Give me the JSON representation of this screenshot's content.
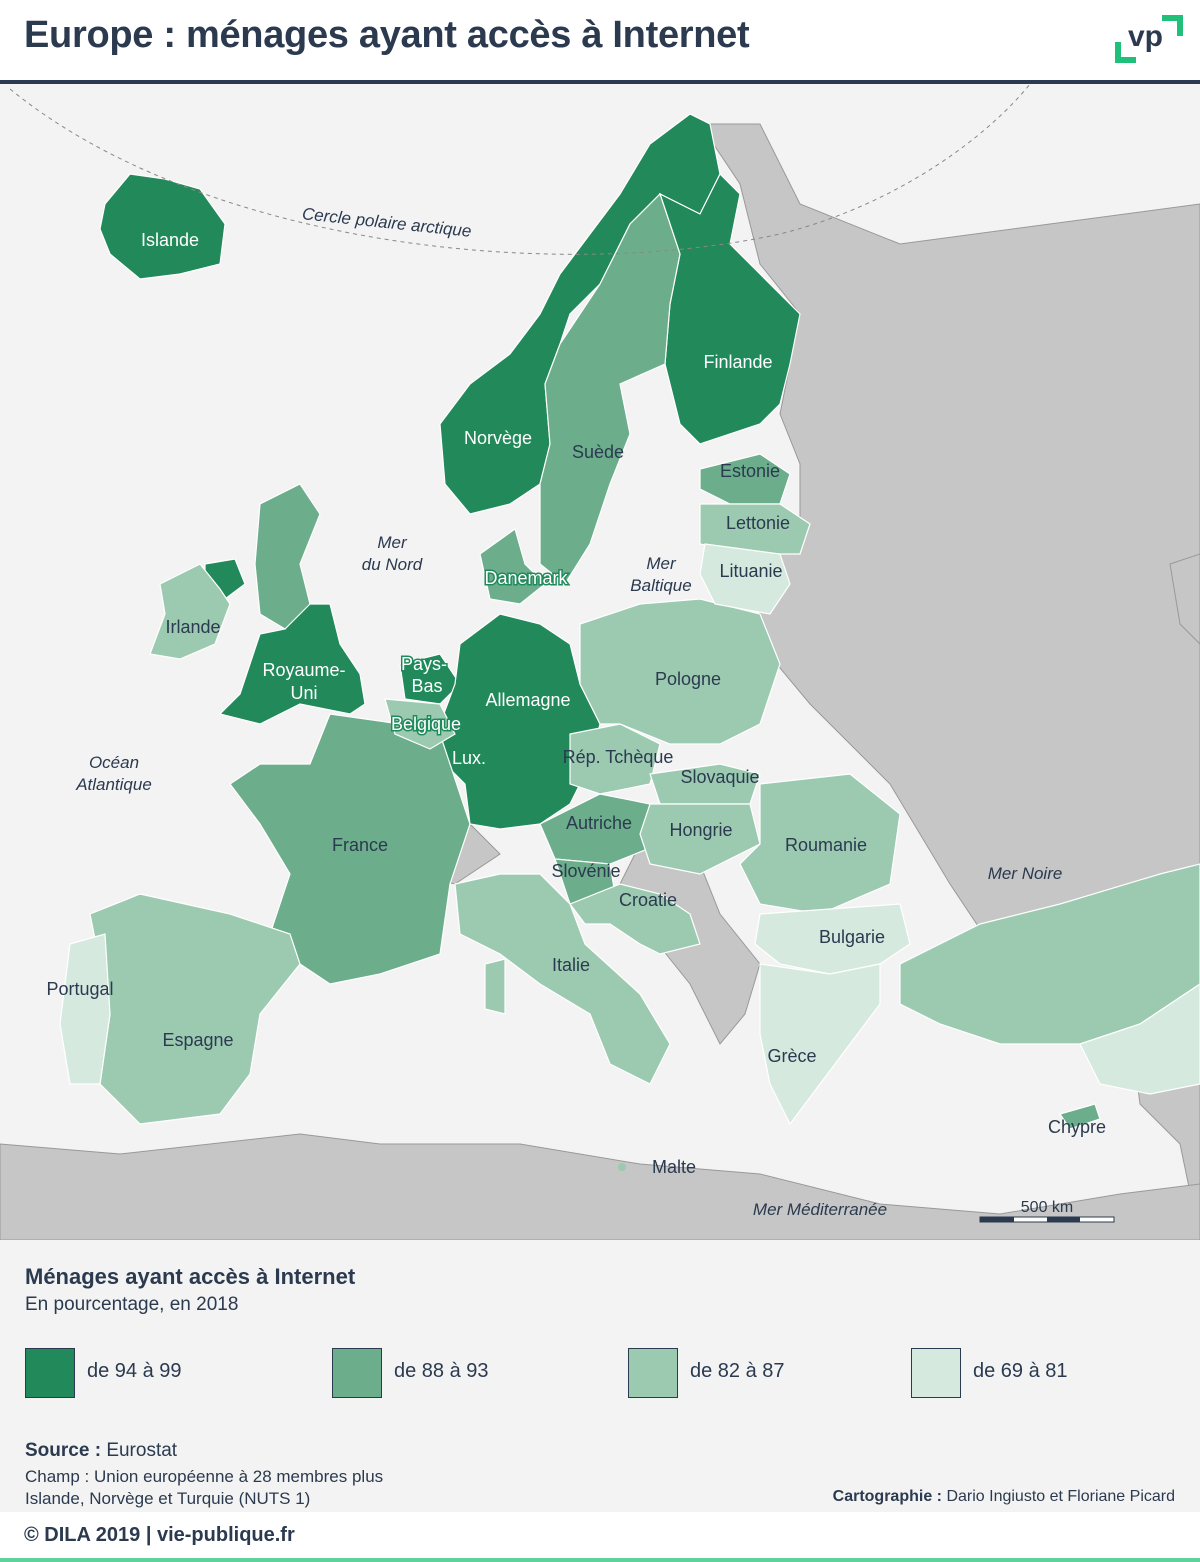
{
  "header": {
    "title": "Europe : ménages ayant accès à Internet",
    "logo_text": "vp"
  },
  "map": {
    "seas": {
      "arctic_circle": "Cercle polaire arctique",
      "north_sea_1": "Mer",
      "north_sea_2": "du Nord",
      "baltic_1": "Mer",
      "baltic_2": "Baltique",
      "atlantic_1": "Océan",
      "atlantic_2": "Atlantique",
      "black_sea": "Mer Noire",
      "mediterranean": "Mer Méditerranée"
    },
    "scale_label": "500 km",
    "countries": {
      "islande": {
        "name": "Islande",
        "class": "de 94 à 99"
      },
      "norvege": {
        "name": "Norvège",
        "class": "de 94 à 99"
      },
      "finlande": {
        "name": "Finlande",
        "class": "de 94 à 99"
      },
      "suede": {
        "name": "Suède",
        "class": "de 88 à 93"
      },
      "estonie": {
        "name": "Estonie",
        "class": "de 88 à 93"
      },
      "lettonie": {
        "name": "Lettonie",
        "class": "de 82 à 87"
      },
      "lituanie": {
        "name": "Lituanie",
        "class": "de 69 à 81"
      },
      "danemark": {
        "name": "Danemark",
        "class": "de 88 à 93"
      },
      "irlande": {
        "name": "Irlande",
        "class": "de 82 à 87"
      },
      "royaume_uni_1": {
        "name": "Royaume-",
        "class": "de 94 à 99"
      },
      "royaume_uni_2": {
        "name": "Uni"
      },
      "pays_bas_1": {
        "name": "Pays-",
        "class": "de 94 à 99"
      },
      "pays_bas_2": {
        "name": "Bas"
      },
      "belgique": {
        "name": "Belgique",
        "class": "de 82 à 87"
      },
      "lux": {
        "name": "Lux.",
        "class": "de 94 à 99"
      },
      "allemagne": {
        "name": "Allemagne",
        "class": "de 94 à 99"
      },
      "pologne": {
        "name": "Pologne",
        "class": "de 82 à 87"
      },
      "rep_tcheque": {
        "name": "Rép. Tchèque",
        "class": "de 82 à 87"
      },
      "slovaquie": {
        "name": "Slovaquie",
        "class": "de 82 à 87"
      },
      "autriche": {
        "name": "Autriche",
        "class": "de 88 à 93"
      },
      "hongrie": {
        "name": "Hongrie",
        "class": "de 82 à 87"
      },
      "france": {
        "name": "France",
        "class": "de 88 à 93"
      },
      "slovenie": {
        "name": "Slovénie",
        "class": "de 88 à 93"
      },
      "croatie": {
        "name": "Croatie",
        "class": "de 82 à 87"
      },
      "roumanie": {
        "name": "Roumanie",
        "class": "de 82 à 87"
      },
      "bulgarie": {
        "name": "Bulgarie",
        "class": "de 69 à 81"
      },
      "italie": {
        "name": "Italie",
        "class": "de 82 à 87"
      },
      "portugal": {
        "name": "Portugal",
        "class": "de 69 à 81"
      },
      "espagne": {
        "name": "Espagne",
        "class": "de 82 à 87"
      },
      "grece": {
        "name": "Grèce",
        "class": "de 69 à 81"
      },
      "malte": {
        "name": "Malte",
        "class": "de 82 à 87"
      },
      "chypre": {
        "name": "Chypre",
        "class": "de 82 à 87"
      }
    }
  },
  "legend": {
    "title": "Ménages ayant accès à Internet",
    "subtitle": "En pourcentage, en 2018",
    "classes": [
      {
        "label": "de 94 à 99",
        "color": "#21895a"
      },
      {
        "label": "de 88 à 93",
        "color": "#6cad8c"
      },
      {
        "label": "de 82 à 87",
        "color": "#9ccab1"
      },
      {
        "label": "de 69 à 81",
        "color": "#d6e9df"
      }
    ]
  },
  "source": {
    "label": "Source :",
    "value": "Eurostat",
    "champ": "Champ : Union européenne à 28 membres plus Islande, Norvège et Turquie (NUTS 1)"
  },
  "credits": {
    "label": "Cartographie :",
    "value": "Dario Ingiusto et Floriane Picard"
  },
  "footer": {
    "text": "© DILA 2019 | vie-publique.fr"
  }
}
